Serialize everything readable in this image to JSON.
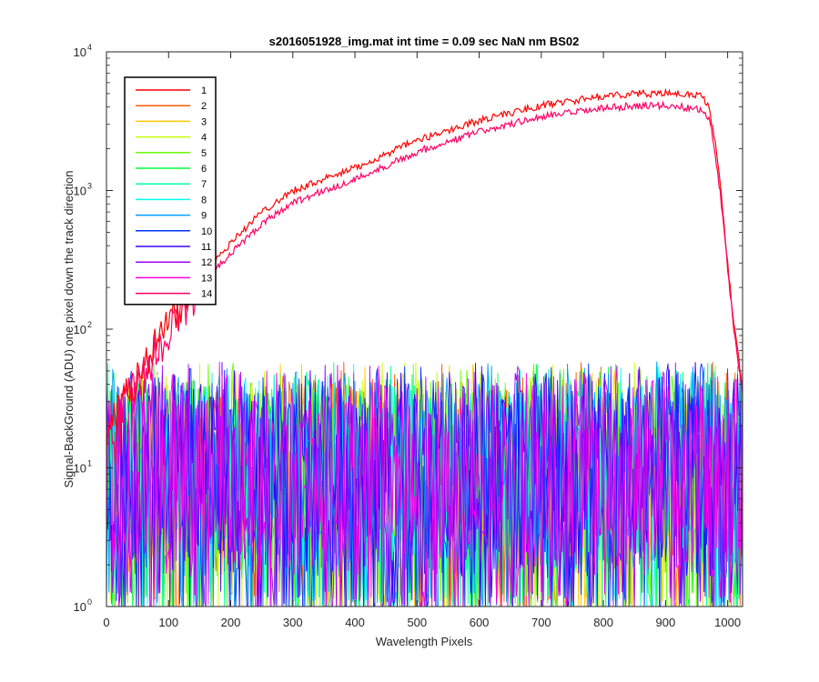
{
  "chart_data": {
    "type": "line",
    "title": "s2016051928_img.mat int time = 0.09 sec  NaN nm BS02",
    "xlabel": "Wavelength Pixels",
    "ylabel": "Signal-BackGround (ADU) one pixel down the track direction",
    "xlim": [
      0,
      1024
    ],
    "ylim": [
      1,
      10000
    ],
    "yscale": "log",
    "grid": false,
    "legend_position": "top-left",
    "x_ticks": [
      "0",
      "100",
      "200",
      "300",
      "400",
      "500",
      "600",
      "700",
      "800",
      "900",
      "1000"
    ],
    "y_ticks": [
      {
        "base": "10",
        "exp": "0",
        "value": 1
      },
      {
        "base": "10",
        "exp": "1",
        "value": 10
      },
      {
        "base": "10",
        "exp": "2",
        "value": 100
      },
      {
        "base": "10",
        "exp": "3",
        "value": 1000
      },
      {
        "base": "10",
        "exp": "4",
        "value": 10000
      }
    ],
    "series": [
      {
        "name": "1",
        "color": "#ff0000",
        "kind": "signal",
        "x": [
          0,
          10,
          20,
          40,
          60,
          80,
          100,
          120,
          150,
          200,
          250,
          300,
          400,
          500,
          600,
          700,
          800,
          850,
          900,
          950,
          960,
          970,
          980,
          990,
          1000,
          1010,
          1020,
          1024
        ],
        "values": [
          16,
          22,
          28,
          40,
          55,
          80,
          110,
          150,
          240,
          420,
          700,
          1000,
          1450,
          2300,
          3200,
          4100,
          4800,
          5000,
          5000,
          4900,
          4700,
          4000,
          2200,
          900,
          300,
          110,
          50,
          40
        ]
      },
      {
        "name": "2",
        "color": "#ff5a00",
        "kind": "noise"
      },
      {
        "name": "3",
        "color": "#ffc800",
        "kind": "noise"
      },
      {
        "name": "4",
        "color": "#c8ff00",
        "kind": "noise"
      },
      {
        "name": "5",
        "color": "#64ff00",
        "kind": "noise"
      },
      {
        "name": "6",
        "color": "#00ff3c",
        "kind": "noise"
      },
      {
        "name": "7",
        "color": "#00ffa0",
        "kind": "noise"
      },
      {
        "name": "8",
        "color": "#00fff0",
        "kind": "noise"
      },
      {
        "name": "9",
        "color": "#00a0ff",
        "kind": "noise"
      },
      {
        "name": "10",
        "color": "#0032ff",
        "kind": "noise"
      },
      {
        "name": "11",
        "color": "#3c00ff",
        "kind": "noise"
      },
      {
        "name": "12",
        "color": "#a000ff",
        "kind": "noise"
      },
      {
        "name": "13",
        "color": "#ff00e6",
        "kind": "noise"
      },
      {
        "name": "14",
        "color": "#ff0064",
        "kind": "signal",
        "x": [
          0,
          10,
          20,
          40,
          60,
          80,
          100,
          120,
          150,
          200,
          250,
          300,
          400,
          500,
          600,
          700,
          800,
          850,
          900,
          950,
          960,
          970,
          980,
          990,
          1000,
          1010,
          1020,
          1024
        ],
        "values": [
          14,
          19,
          24,
          34,
          47,
          68,
          95,
          130,
          200,
          350,
          580,
          820,
          1200,
          1900,
          2650,
          3400,
          3900,
          4100,
          4100,
          3900,
          3750,
          3300,
          1900,
          800,
          280,
          100,
          45,
          35
        ]
      }
    ],
    "noise_range": [
      1,
      50
    ]
  }
}
